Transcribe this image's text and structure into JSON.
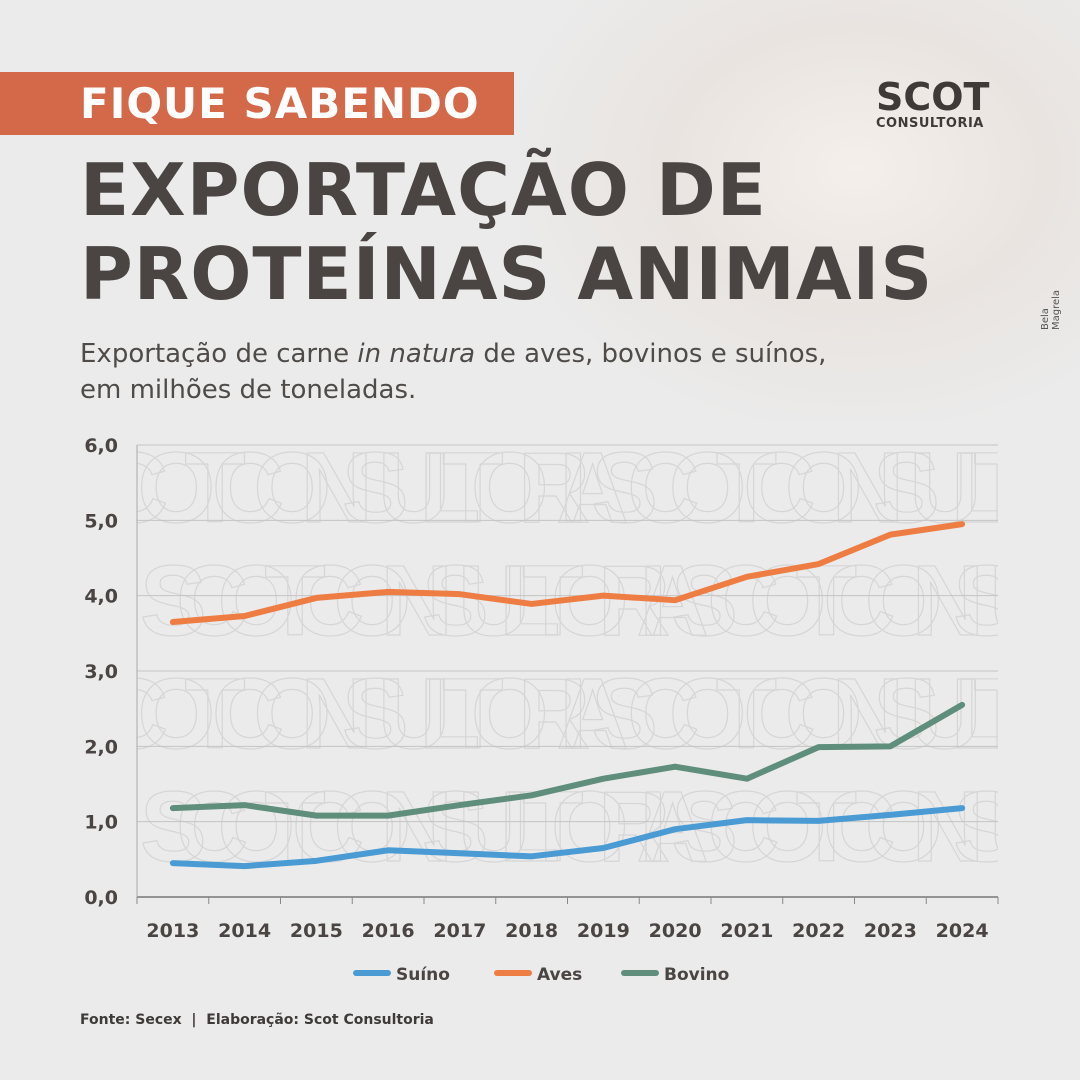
{
  "banner": "FIQUE SABENDO",
  "title_lines": [
    "EXPORTAÇÃO DE",
    "PROTEÍNAS ANIMAIS"
  ],
  "subtitle": {
    "pre": "Exportação de carne ",
    "italic": "in natura",
    "post": " de aves, bovinos e suínos,",
    "line2": "em milhões de toneladas."
  },
  "logo": {
    "name": "SCOT",
    "sub": "CONSULTORIA"
  },
  "photo_credit": "Bela Magrela",
  "watermark": "SCOT CONSULTORIA",
  "source": "Fonte: Secex  |  Elaboração: Scot Consultoria",
  "colors": {
    "banner": "#d4694a",
    "suino": "#4a9bd4",
    "aves": "#ee7d44",
    "bovino": "#5f8e7c"
  },
  "chart_data": {
    "type": "line",
    "categories": [
      "2013",
      "2014",
      "2015",
      "2016",
      "2017",
      "2018",
      "2019",
      "2020",
      "2021",
      "2022",
      "2023",
      "2024"
    ],
    "ylim": [
      0,
      6
    ],
    "yticks": [
      "0,0",
      "1,0",
      "2,0",
      "3,0",
      "4,0",
      "5,0",
      "6,0"
    ],
    "grid": true,
    "legend": "bottom",
    "series": [
      {
        "name": "Suíno",
        "color": "#4a9bd4",
        "values": [
          0.45,
          0.41,
          0.48,
          0.62,
          0.58,
          0.54,
          0.65,
          0.9,
          1.02,
          1.01,
          1.09,
          1.18
        ]
      },
      {
        "name": "Aves",
        "color": "#ee7d44",
        "values": [
          3.65,
          3.73,
          3.97,
          4.05,
          4.02,
          3.89,
          4.0,
          3.94,
          4.25,
          4.42,
          4.81,
          4.95
        ]
      },
      {
        "name": "Bovino",
        "color": "#5f8e7c",
        "values": [
          1.18,
          1.22,
          1.08,
          1.08,
          1.22,
          1.35,
          1.57,
          1.73,
          1.57,
          1.99,
          2.0,
          2.55
        ]
      }
    ]
  }
}
